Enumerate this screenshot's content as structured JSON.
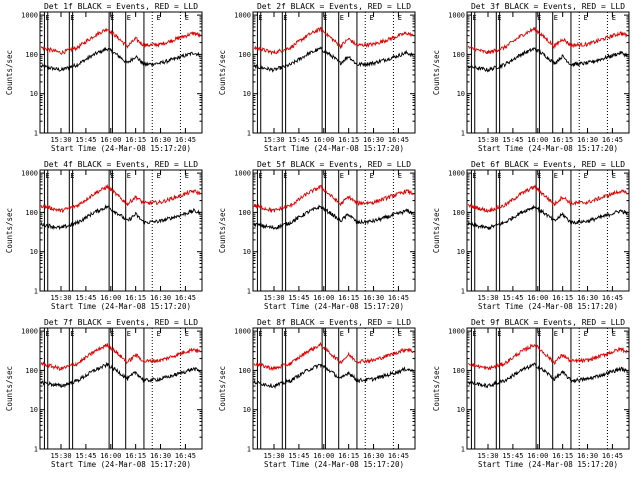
{
  "colors": {
    "events": "#000000",
    "lld": "#e00000",
    "axes": "#000000",
    "background": "#ffffff"
  },
  "shared": {
    "xlabel": "Start Time (24-Mar-08 15:17:20)",
    "ylabel": "Counts/sec",
    "x_tick_labels": [
      "15:30",
      "15:45",
      "16:00",
      "16:15",
      "16:30",
      "16:45"
    ],
    "y_tick_labels": [
      "1",
      "10",
      "100",
      "1000"
    ],
    "region_marker": "E"
  },
  "chart_data": [
    {
      "title": "Det 1f BLACK = Events, RED = LLD"
    },
    {
      "title": "Det 2f BLACK = Events, RED = LLD"
    },
    {
      "title": "Det 3f BLACK = Events, RED = LLD"
    },
    {
      "title": "Det 4f BLACK = Events, RED = LLD"
    },
    {
      "title": "Det 5f BLACK = Events, RED = LLD"
    },
    {
      "title": "Det 6f BLACK = Events, RED = LLD"
    },
    {
      "title": "Det 7f BLACK = Events, RED = LLD"
    },
    {
      "title": "Det 8f BLACK = Events, RED = LLD"
    },
    {
      "title": "Det 9f BLACK = Events, RED = LLD"
    }
  ],
  "chart_common": {
    "type": "line",
    "y_scale": "log",
    "ylim": [
      1,
      1200
    ],
    "xlim": [
      "15:17:20",
      "16:55"
    ],
    "solid_vlines": [
      "15:20",
      "15:22",
      "15:35",
      "15:37",
      "15:59",
      "16:01",
      "16:09",
      "16:20"
    ],
    "dotted_vlines": [
      "16:25",
      "16:42"
    ],
    "region_markers_at": [
      "15:20",
      "15:35",
      "15:59",
      "16:09",
      "16:27",
      "16:44"
    ],
    "series": [
      {
        "name": "Events",
        "color": "black",
        "x": [
          "15:18",
          "15:30",
          "15:40",
          "15:50",
          "15:58",
          "16:05",
          "16:10",
          "16:15",
          "16:20",
          "16:30",
          "16:40",
          "16:50",
          "16:54"
        ],
        "values": [
          50,
          40,
          55,
          100,
          140,
          90,
          60,
          90,
          55,
          60,
          80,
          110,
          95
        ]
      },
      {
        "name": "LLD",
        "color": "red",
        "x": [
          "15:18",
          "15:30",
          "15:40",
          "15:50",
          "15:58",
          "16:05",
          "16:10",
          "16:15",
          "16:20",
          "16:30",
          "16:40",
          "16:50",
          "16:54"
        ],
        "values": [
          150,
          110,
          150,
          300,
          450,
          250,
          160,
          250,
          170,
          180,
          250,
          350,
          300
        ]
      }
    ]
  }
}
